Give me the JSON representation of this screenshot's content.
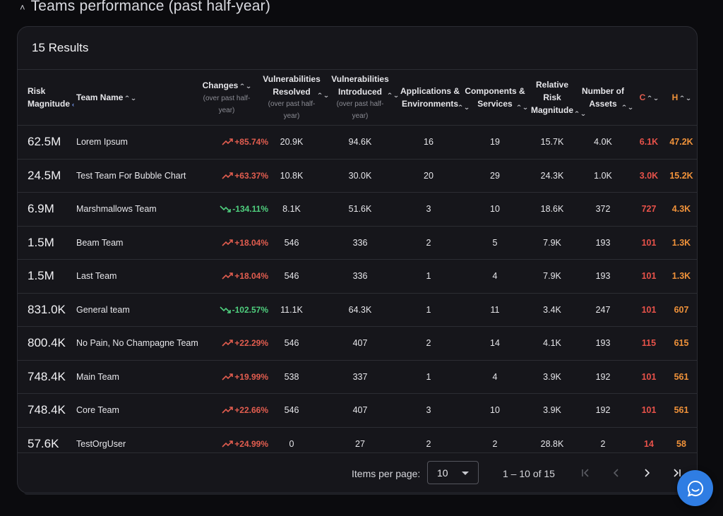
{
  "section": {
    "title": "Teams performance (past half-year)"
  },
  "card": {
    "results_label": "15 Results"
  },
  "columns": {
    "risk": "Risk Magnitude",
    "team": "Team Name",
    "changes": "Changes",
    "changes_sub": "(over past half-year)",
    "vuln_resolved": "Vulnerabilities Resolved",
    "vuln_resolved_sub": "(over past half-year)",
    "vuln_introduced": "Vulnerabilities Introduced",
    "vuln_introduced_sub": "(over past half-year)",
    "apps": "Applications & Environments",
    "components": "Components & Services",
    "relative": "Relative Risk Magnitude",
    "assets": "Number of Assets",
    "c": "C",
    "h": "H"
  },
  "rows": [
    {
      "risk": "62.5M",
      "team": "Lorem Ipsum",
      "change": "+85.74%",
      "dir": "up",
      "resolved": "20.9K",
      "introduced": "94.6K",
      "apps": "16",
      "components": "19",
      "relative": "15.7K",
      "assets": "4.0K",
      "c": "6.1K",
      "h": "47.2K"
    },
    {
      "risk": "24.5M",
      "team": "Test Team For Bubble Chart",
      "change": "+63.37%",
      "dir": "up",
      "resolved": "10.8K",
      "introduced": "30.0K",
      "apps": "20",
      "components": "29",
      "relative": "24.3K",
      "assets": "1.0K",
      "c": "3.0K",
      "h": "15.2K"
    },
    {
      "risk": "6.9M",
      "team": "Marshmallows Team",
      "change": "-134.11%",
      "dir": "down",
      "resolved": "8.1K",
      "introduced": "51.6K",
      "apps": "3",
      "components": "10",
      "relative": "18.6K",
      "assets": "372",
      "c": "727",
      "h": "4.3K"
    },
    {
      "risk": "1.5M",
      "team": "Beam Team",
      "change": "+18.04%",
      "dir": "up",
      "resolved": "546",
      "introduced": "336",
      "apps": "2",
      "components": "5",
      "relative": "7.9K",
      "assets": "193",
      "c": "101",
      "h": "1.3K"
    },
    {
      "risk": "1.5M",
      "team": "Last Team",
      "change": "+18.04%",
      "dir": "up",
      "resolved": "546",
      "introduced": "336",
      "apps": "1",
      "components": "4",
      "relative": "7.9K",
      "assets": "193",
      "c": "101",
      "h": "1.3K"
    },
    {
      "risk": "831.0K",
      "team": "General team",
      "change": "-102.57%",
      "dir": "down",
      "resolved": "11.1K",
      "introduced": "64.3K",
      "apps": "1",
      "components": "11",
      "relative": "3.4K",
      "assets": "247",
      "c": "101",
      "h": "607"
    },
    {
      "risk": "800.4K",
      "team": "No Pain, No Champagne Team",
      "change": "+22.29%",
      "dir": "up",
      "resolved": "546",
      "introduced": "407",
      "apps": "2",
      "components": "14",
      "relative": "4.1K",
      "assets": "193",
      "c": "115",
      "h": "615"
    },
    {
      "risk": "748.4K",
      "team": "Main Team",
      "change": "+19.99%",
      "dir": "up",
      "resolved": "538",
      "introduced": "337",
      "apps": "1",
      "components": "4",
      "relative": "3.9K",
      "assets": "192",
      "c": "101",
      "h": "561"
    },
    {
      "risk": "748.4K",
      "team": "Core Team",
      "change": "+22.66%",
      "dir": "up",
      "resolved": "546",
      "introduced": "407",
      "apps": "3",
      "components": "10",
      "relative": "3.9K",
      "assets": "192",
      "c": "101",
      "h": "561"
    },
    {
      "risk": "57.6K",
      "team": "TestOrgUser",
      "change": "+24.99%",
      "dir": "up",
      "resolved": "0",
      "introduced": "27",
      "apps": "2",
      "components": "2",
      "relative": "28.8K",
      "assets": "2",
      "c": "14",
      "h": "58"
    }
  ],
  "pagination": {
    "items_per_page_label": "Items per page:",
    "items_per_page_value": "10",
    "range_label": "1 – 10 of 15"
  },
  "icons": {
    "collapse": "chevron-up-icon",
    "sort": "sort-icon",
    "trend_up": "trending-up-icon",
    "trend_down": "trending-down-icon",
    "first": "first-page-icon",
    "prev": "prev-page-icon",
    "next": "next-page-icon",
    "last": "last-page-icon",
    "chat": "chat-icon"
  },
  "colors": {
    "negative": "#e25d4f",
    "positive": "#4fcf7e",
    "critical": "#e8524a",
    "high": "#f0923a",
    "accent": "#2f7de3"
  }
}
